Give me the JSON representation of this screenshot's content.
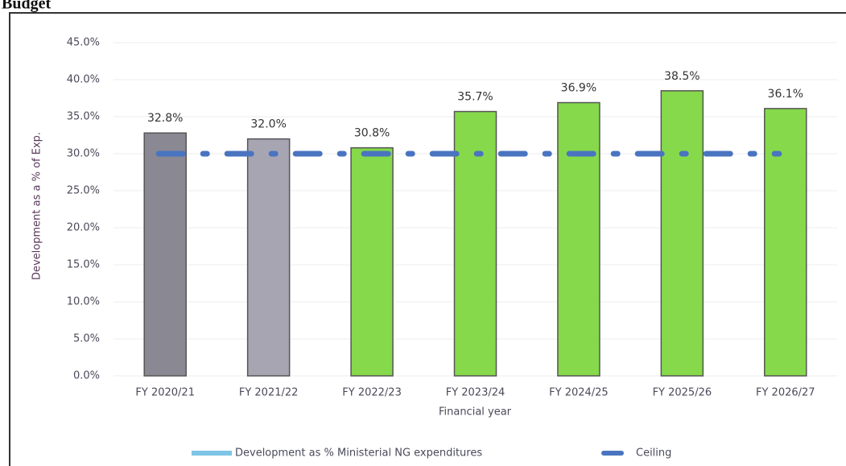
{
  "title": "Budget",
  "chart_data": {
    "type": "bar",
    "x_label": "Financial year",
    "y_label": "Development as a % of Exp.",
    "categories": [
      "FY 2020/21",
      "FY 2021/22",
      "FY 2022/23",
      "FY 2023/24",
      "FY 2024/25",
      "FY 2025/26",
      "FY 2026/27"
    ],
    "series": [
      {
        "name": "Development as % Ministerial NG expenditures",
        "color": "#7ec4e6",
        "colors": [
          "#8a8893",
          "#a8a5b3",
          "#86d94a",
          "#86d94a",
          "#86d94a",
          "#86d94a",
          "#86d94a"
        ],
        "values": [
          32.8,
          32.0,
          30.8,
          35.7,
          36.9,
          38.5,
          36.1
        ],
        "value_labels": [
          "32.8%",
          "32.0%",
          "30.8%",
          "35.7%",
          "36.9%",
          "38.5%",
          "36.1%"
        ]
      },
      {
        "name": "Ceiling",
        "type": "line",
        "color": "#4a74c0",
        "values": [
          30,
          30,
          30,
          30,
          30,
          30,
          30
        ]
      }
    ],
    "ylim": [
      0,
      45
    ],
    "yticks": [
      {
        "value": 0,
        "label": "0.0%"
      },
      {
        "value": 5,
        "label": "5.0%"
      },
      {
        "value": 10,
        "label": "10.0%"
      },
      {
        "value": 15,
        "label": "15.0%"
      },
      {
        "value": 20,
        "label": "20.0%"
      },
      {
        "value": 25,
        "label": "25.0%"
      },
      {
        "value": 30,
        "label": "30.0%"
      },
      {
        "value": 35,
        "label": "35.0%"
      },
      {
        "value": 40,
        "label": "40.0%"
      },
      {
        "value": 45,
        "label": "45.0%"
      }
    ],
    "grid": true,
    "legend": "bottom"
  }
}
